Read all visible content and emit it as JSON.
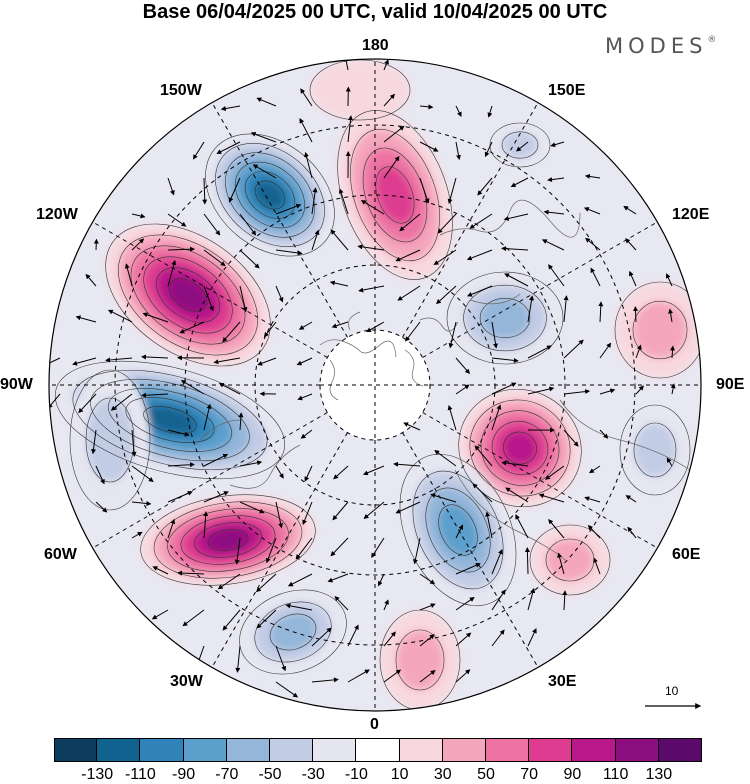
{
  "title": "Base 06/04/2025 00 UTC, valid 10/04/2025 00 UTC",
  "brand": "MODES",
  "brand_mark": "®",
  "longitude_labels": {
    "top": "180",
    "top_left": "150W",
    "top_right": "150E",
    "upper_left": "120W",
    "upper_right": "120E",
    "left": "90W",
    "right": "90E",
    "lower_left": "60W",
    "lower_right": "60E",
    "bottom_left": "30W",
    "bottom_right": "30E",
    "bottom": "0"
  },
  "reference_vector_label": "10",
  "colorbar": {
    "ticks": [
      "-130",
      "-110",
      "-90",
      "-70",
      "-50",
      "-30",
      "-10",
      "10",
      "30",
      "50",
      "70",
      "90",
      "110",
      "130"
    ],
    "colors": [
      "#0d3d5e",
      "#12628f",
      "#2f83b8",
      "#5b9fcc",
      "#93b6d9",
      "#c3cce5",
      "#e6e6f1",
      "#ffffff",
      "#f8d8df",
      "#f4a6bd",
      "#ec73a3",
      "#dd3c90",
      "#b8188a",
      "#8c0f80",
      "#5b0a6b"
    ]
  },
  "anomaly_centers": [
    {
      "lon_label": "150W",
      "sign": "negative",
      "peak": -130
    },
    {
      "lon_label": "120W",
      "sign": "positive",
      "peak": 120
    },
    {
      "lon_label": "90W",
      "sign": "negative",
      "peak": -130
    },
    {
      "lon_label": "60W",
      "sign": "positive",
      "peak": 120
    },
    {
      "lon_label": "30W",
      "sign": "negative",
      "peak": -70
    },
    {
      "lon_label": "180",
      "sign": "positive",
      "peak": 90
    },
    {
      "lon_label": "120E",
      "sign": "negative",
      "peak": -70
    },
    {
      "lon_label": "90E",
      "sign": "positive",
      "peak": 110
    },
    {
      "lon_label": "60E",
      "sign": "negative",
      "peak": -90
    }
  ]
}
